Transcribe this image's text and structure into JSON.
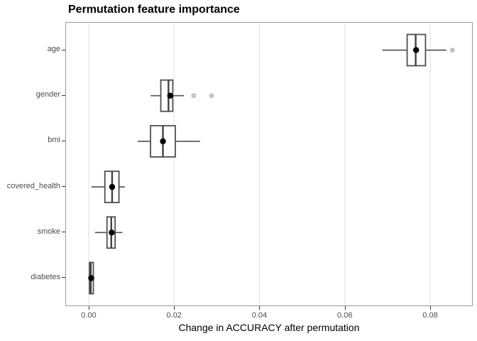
{
  "chart_data": {
    "type": "boxplot",
    "orientation": "horizontal",
    "title": "Permutation feature importance",
    "xlabel": "Change in ACCURACY after permutation",
    "ylabel": "",
    "categories": [
      "age",
      "gender",
      "bmi",
      "covered_health",
      "smoke",
      "diabetes"
    ],
    "x_ticks": [
      0.0,
      0.02,
      0.04,
      0.06,
      0.08
    ],
    "x_tick_labels": [
      "0.00",
      "0.02",
      "0.04",
      "0.06",
      "0.08"
    ],
    "xlim": [
      -0.0053,
      0.0898
    ],
    "grid": "vertical-major-only",
    "legend": "none",
    "boxes": [
      {
        "name": "age",
        "whisker_low": 0.0688,
        "q1": 0.0746,
        "median": 0.0766,
        "q3": 0.0789,
        "whisker_high": 0.0838,
        "mean": 0.0767,
        "outliers": [
          0.0852
        ]
      },
      {
        "name": "gender",
        "whisker_low": 0.0145,
        "q1": 0.0169,
        "median": 0.0187,
        "q3": 0.0197,
        "whisker_high": 0.0223,
        "mean": 0.0191,
        "outliers": [
          0.0246,
          0.0288
        ]
      },
      {
        "name": "bmi",
        "whisker_low": 0.0115,
        "q1": 0.0145,
        "median": 0.0174,
        "q3": 0.0203,
        "whisker_high": 0.0261,
        "mean": 0.0174,
        "outliers": []
      },
      {
        "name": "covered_health",
        "whisker_low": 0.0006,
        "q1": 0.0038,
        "median": 0.0055,
        "q3": 0.0071,
        "whisker_high": 0.0085,
        "mean": 0.0055,
        "outliers": []
      },
      {
        "name": "smoke",
        "whisker_low": 0.0015,
        "q1": 0.0043,
        "median": 0.0053,
        "q3": 0.0062,
        "whisker_high": 0.0079,
        "mean": 0.0054,
        "outliers": []
      },
      {
        "name": "diabetes",
        "whisker_low": 0.0,
        "q1": 0.0002,
        "median": 0.0005,
        "q3": 0.0011,
        "whisker_high": 0.0013,
        "mean": 0.0006,
        "outliers": []
      }
    ]
  },
  "style": {
    "background": "#ffffff",
    "panel_border": "#999999",
    "gridline": "#e0e0e0",
    "box_stroke": "#4f4f4f",
    "median_stroke": "#424242",
    "whisker_stroke": "#4f4f4f",
    "mean_fill": "#000000",
    "outlier_fill": "#c9c9c9",
    "outlier_stroke": "#b3b3b3",
    "axis_text": "#4d4d4d",
    "tick_color": "#333333",
    "title_color": "#000000"
  }
}
